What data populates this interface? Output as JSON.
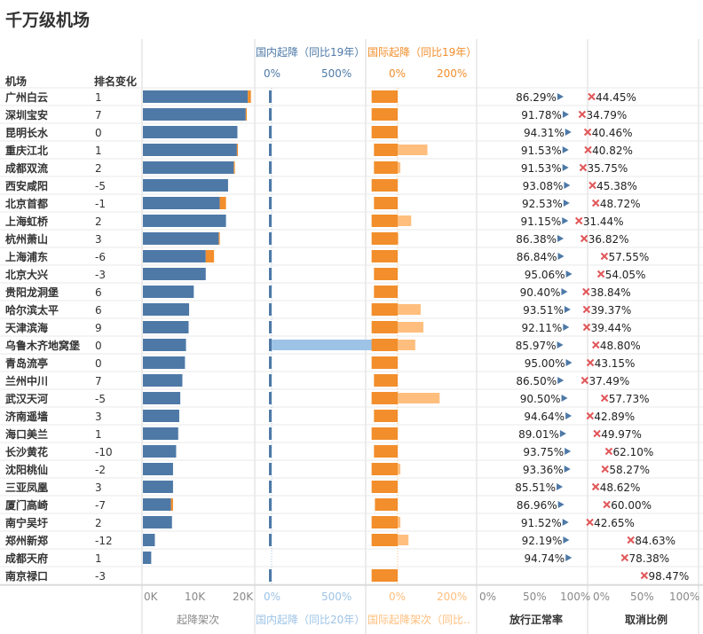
{
  "title": "千万级机场",
  "headers": {
    "airport": "机场",
    "rank_change": "排名变化",
    "domestic_top": "国内起降（同比19年）",
    "intl_top": "国际起降（同比19年）",
    "flights_bottom": "起降架次",
    "domestic_bottom": "国内起降（同比20年）",
    "intl_bottom": "国际起降架次（同比..",
    "ontime_bottom": "放行正常率",
    "cancel_bottom": "取消比例"
  },
  "top_ticks": {
    "domestic": [
      "0%",
      "500%"
    ],
    "intl": [
      "0%",
      "200%"
    ]
  },
  "bottom_ticks": {
    "flights": [
      "0K",
      "10K",
      "20K"
    ],
    "domestic": [
      "0%",
      "500%"
    ],
    "intl": [
      "0%",
      "200%"
    ],
    "ontime": [
      "0%",
      "50%",
      "100%"
    ],
    "cancel": [
      "0%",
      "50%",
      "100%"
    ]
  },
  "colors": {
    "blue": "#4e79a7",
    "light_blue": "#9dc3e6",
    "orange": "#f28e2b",
    "light_orange": "#ffbe7d",
    "arrow": "#4e79a7",
    "cross": "#e15759"
  },
  "chart_data": {
    "type": "bar",
    "columns": [
      "机场",
      "排名变化",
      "起降架次",
      "国内起降（同比19年）",
      "国内起降（同比20年）",
      "国际起降（同比19年）",
      "国际起降（同比20年）",
      "放行正常率",
      "取消比例"
    ],
    "rows": [
      {
        "airport": "广州白云",
        "rank": "1",
        "flights": 20200,
        "flights_extra": 600,
        "dom19": 95,
        "dom20": 95,
        "intl19": 55,
        "intl20": 55,
        "ontime": "86.29%",
        "cancel": "44.45%"
      },
      {
        "airport": "深圳宝安",
        "rank": "7",
        "flights": 19800,
        "flights_extra": 200,
        "dom19": 90,
        "dom20": 90,
        "intl19": 55,
        "intl20": 55,
        "ontime": "91.78%",
        "cancel": "34.79%"
      },
      {
        "airport": "昆明长水",
        "rank": "0",
        "flights": 18200,
        "flights_extra": 0,
        "dom19": 85,
        "dom20": 85,
        "intl19": 55,
        "intl20": 55,
        "ontime": "94.31%",
        "cancel": "40.46%"
      },
      {
        "airport": "重庆江北",
        "rank": "1",
        "flights": 18100,
        "flights_extra": 200,
        "dom19": 85,
        "dom20": 85,
        "intl19": 50,
        "intl20": 160,
        "ontime": "91.53%",
        "cancel": "40.82%"
      },
      {
        "airport": "成都双流",
        "rank": "2",
        "flights": 17500,
        "flights_extra": 200,
        "dom19": 80,
        "dom20": 80,
        "intl19": 50,
        "intl20": 60,
        "ontime": "91.53%",
        "cancel": "35.75%"
      },
      {
        "airport": "西安咸阳",
        "rank": "-5",
        "flights": 16400,
        "flights_extra": 0,
        "dom19": 80,
        "dom20": 80,
        "intl19": 55,
        "intl20": 55,
        "ontime": "93.08%",
        "cancel": "45.38%"
      },
      {
        "airport": "北京首都",
        "rank": "-1",
        "flights": 14800,
        "flights_extra": 1200,
        "dom19": 115,
        "dom20": 115,
        "intl19": 50,
        "intl20": 50,
        "ontime": "92.53%",
        "cancel": "48.72%"
      },
      {
        "airport": "上海虹桥",
        "rank": "2",
        "flights": 16000,
        "flights_extra": 0,
        "dom19": 75,
        "dom20": 75,
        "intl19": 55,
        "intl20": 105,
        "ontime": "91.15%",
        "cancel": "31.44%"
      },
      {
        "airport": "杭州萧山",
        "rank": "3",
        "flights": 14600,
        "flights_extra": 200,
        "dom19": 70,
        "dom20": 70,
        "intl19": 55,
        "intl20": 58,
        "ontime": "86.38%",
        "cancel": "36.82%"
      },
      {
        "airport": "上海浦东",
        "rank": "-6",
        "flights": 12100,
        "flights_extra": 1600,
        "dom19": 90,
        "dom20": 90,
        "intl19": 55,
        "intl20": 55,
        "ontime": "86.84%",
        "cancel": "57.55%"
      },
      {
        "airport": "北京大兴",
        "rank": "-3",
        "flights": 12100,
        "flights_extra": 0,
        "dom19": 15,
        "dom20": 15,
        "intl19": 50,
        "intl20": 50,
        "ontime": "95.06%",
        "cancel": "54.05%"
      },
      {
        "airport": "贵阳龙洞堡",
        "rank": "6",
        "flights": 9800,
        "flights_extra": 0,
        "dom19": 80,
        "dom20": 80,
        "intl19": 50,
        "intl20": 50,
        "ontime": "90.40%",
        "cancel": "38.84%"
      },
      {
        "airport": "哈尔滨太平",
        "rank": "6",
        "flights": 8900,
        "flights_extra": 0,
        "dom19": 80,
        "dom20": 80,
        "intl19": 55,
        "intl20": 140,
        "ontime": "93.51%",
        "cancel": "39.37%"
      },
      {
        "airport": "天津滨海",
        "rank": "9",
        "flights": 8800,
        "flights_extra": 0,
        "dom19": 75,
        "dom20": 75,
        "intl19": 55,
        "intl20": 150,
        "ontime": "92.11%",
        "cancel": "39.44%"
      },
      {
        "airport": "乌鲁木齐地窝堡",
        "rank": "0",
        "flights": 8300,
        "flights_extra": 0,
        "dom19": 70,
        "dom20": 920,
        "intl19": 55,
        "intl20": 120,
        "ontime": "85.97%",
        "cancel": "48.80%"
      },
      {
        "airport": "青岛流亭",
        "rank": "0",
        "flights": 8100,
        "flights_extra": 0,
        "dom19": 75,
        "dom20": 75,
        "intl19": 55,
        "intl20": 55,
        "ontime": "95.00%",
        "cancel": "43.15%"
      },
      {
        "airport": "兰州中川",
        "rank": "7",
        "flights": 7600,
        "flights_extra": 0,
        "dom19": 75,
        "dom20": 75,
        "intl19": 50,
        "intl20": 50,
        "ontime": "86.50%",
        "cancel": "37.49%"
      },
      {
        "airport": "武汉天河",
        "rank": "-5",
        "flights": 7200,
        "flights_extra": 0,
        "dom19": 75,
        "dom20": 75,
        "intl19": 55,
        "intl20": 210,
        "ontime": "90.50%",
        "cancel": "57.73%"
      },
      {
        "airport": "济南遥墙",
        "rank": "3",
        "flights": 7000,
        "flights_extra": 0,
        "dom19": 75,
        "dom20": 75,
        "intl19": 50,
        "intl20": 50,
        "ontime": "94.64%",
        "cancel": "42.89%"
      },
      {
        "airport": "海口美兰",
        "rank": "1",
        "flights": 6800,
        "flights_extra": 0,
        "dom19": 70,
        "dom20": 70,
        "intl19": 55,
        "intl20": 55,
        "ontime": "89.01%",
        "cancel": "49.97%"
      },
      {
        "airport": "长沙黄花",
        "rank": "-10",
        "flights": 6400,
        "flights_extra": 0,
        "dom19": 80,
        "dom20": 80,
        "intl19": 50,
        "intl20": 50,
        "ontime": "93.75%",
        "cancel": "62.10%"
      },
      {
        "airport": "沈阳桃仙",
        "rank": "-2",
        "flights": 5800,
        "flights_extra": 0,
        "dom19": 80,
        "dom20": 80,
        "intl19": 55,
        "intl20": 65,
        "ontime": "93.36%",
        "cancel": "58.27%"
      },
      {
        "airport": "三亚凤凰",
        "rank": "3",
        "flights": 5800,
        "flights_extra": 0,
        "dom19": 55,
        "dom20": 45,
        "intl19": 55,
        "intl20": 55,
        "ontime": "85.51%",
        "cancel": "48.62%"
      },
      {
        "airport": "厦门高崎",
        "rank": "-7",
        "flights": 5400,
        "flights_extra": 400,
        "dom19": 75,
        "dom20": 75,
        "intl19": 48,
        "intl20": 48,
        "ontime": "86.96%",
        "cancel": "60.00%"
      },
      {
        "airport": "南宁吴圩",
        "rank": "2",
        "flights": 5600,
        "flights_extra": 0,
        "dom19": 75,
        "dom20": 75,
        "intl19": 55,
        "intl20": 65,
        "ontime": "91.52%",
        "cancel": "42.65%"
      },
      {
        "airport": "郑州新郑",
        "rank": "-12",
        "flights": 2300,
        "flights_extra": 0,
        "dom19": 120,
        "dom20": 120,
        "intl19": 55,
        "intl20": 95,
        "ontime": "92.19%",
        "cancel": "84.63%"
      },
      {
        "airport": "成都天府",
        "rank": "1",
        "flights": 1600,
        "flights_extra": 0,
        "dom19": 0,
        "dom20": 0,
        "intl19": 0,
        "intl20": 0,
        "ontime": "94.74%",
        "cancel": "78.38%"
      },
      {
        "airport": "南京禄口",
        "rank": "-3",
        "flights": 0,
        "flights_extra": 0,
        "dom19": 130,
        "dom20": 130,
        "intl19": 55,
        "intl20": 55,
        "ontime": "",
        "cancel": "98.47%"
      }
    ]
  }
}
